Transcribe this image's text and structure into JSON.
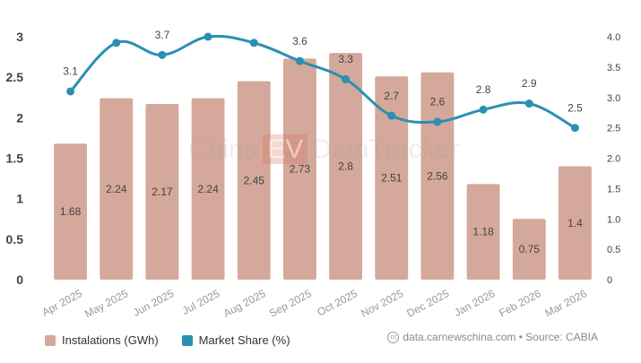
{
  "chart_data": {
    "type": "bar",
    "categories": [
      "Apr 2025",
      "May 2025",
      "Jun 2025",
      "Jul 2025",
      "Aug 2025",
      "Sep 2025",
      "Oct 2025",
      "Nov 2025",
      "Dec 2025",
      "Jan 2026",
      "Feb 2026",
      "Mar 2026"
    ],
    "series": [
      {
        "name": "Instalations (GWh)",
        "type": "bar",
        "axis": "left",
        "values": [
          1.68,
          2.24,
          2.17,
          2.24,
          2.45,
          2.73,
          2.8,
          2.51,
          2.56,
          1.18,
          0.75,
          1.4
        ],
        "labels": [
          "1.68",
          "2.24",
          "2.17",
          "2.24",
          "2.45",
          "2.73",
          "2.8",
          "2.51",
          "2.56",
          "1.18",
          "0.75",
          "1.4"
        ]
      },
      {
        "name": "Market Share (%)",
        "type": "line",
        "axis": "right",
        "values": [
          3.1,
          3.9,
          3.7,
          4.0,
          3.9,
          3.6,
          3.3,
          2.7,
          2.6,
          2.8,
          2.9,
          2.5
        ],
        "labels": [
          "3.1",
          "",
          "3.7",
          "",
          "",
          "3.6",
          "3.3",
          "2.7",
          "2.6",
          "2.8",
          "2.9",
          "2.5"
        ]
      }
    ],
    "y_left": {
      "min": 0,
      "max": 3,
      "ticks": [
        "0",
        "0.5",
        "1",
        "1.5",
        "2",
        "2.5",
        "3"
      ]
    },
    "y_right": {
      "min": 0,
      "max": 4,
      "ticks": [
        "0",
        "0.5",
        "1.0",
        "1.5",
        "2.0",
        "2.5",
        "3.0",
        "3.5",
        "4.0"
      ]
    },
    "grid": false,
    "legend_position": "bottom-left",
    "colors": {
      "bar": "#d4a89a",
      "bar_label": "#444444",
      "line": "#2b8fb3",
      "axis_text": "#444444",
      "tick_text": "#999999"
    }
  },
  "legend": {
    "bars_label": "Instalations (GWh)",
    "line_label": "Market Share (%)"
  },
  "source": {
    "text": "data.carnewschina.com • Source: CABIA",
    "icon": "cc-icon"
  },
  "watermark": {
    "left": "China",
    "mid": "EV",
    "right": "DataTracker"
  }
}
